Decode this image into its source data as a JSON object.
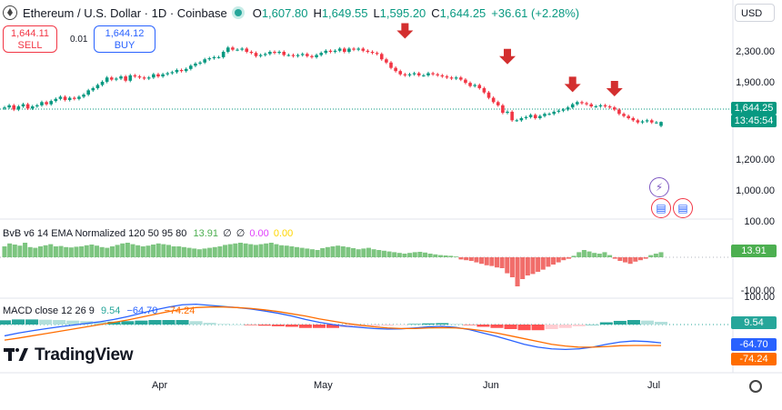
{
  "header": {
    "symbol": "Ethereum / U.S. Dollar · 1D · Coinbase",
    "o_label": "O",
    "o_value": "1,607.80",
    "h_label": "H",
    "h_value": "1,649.55",
    "l_label": "L",
    "l_value": "1,595.20",
    "c_label": "C",
    "c_value": "1,644.25",
    "change": "+36.61 (+2.28%)",
    "currency": "USD",
    "icon": "ethereum-icon"
  },
  "trade": {
    "sell_price": "1,644.11",
    "sell_label": "SELL",
    "buy_price": "1,644.12",
    "buy_label": "BUY",
    "spread": "0.01"
  },
  "price_axis": {
    "labels": [
      "2,300.00",
      "1,900.00",
      "1,200.00",
      "1,000.00"
    ],
    "last_price": "1,644.25",
    "countdown": "13:45:54",
    "last_price_color": "#089981"
  },
  "bvb": {
    "legend_name": "BvB v6 14 EMA Normalized 120 50 95 80",
    "legend_values": [
      "13.91",
      "∅",
      "∅",
      "0.00",
      "0.00"
    ],
    "axis_top": "100.00",
    "axis_bottom": "-100.00",
    "tag": "13.91",
    "tag_color": "#4caf50"
  },
  "macd": {
    "legend_name": "MACD close 12 26 9",
    "legend_values": [
      "9.54",
      "−64.70",
      "−74.24"
    ],
    "axis_top": "100.00",
    "tag_hist": "9.54",
    "tag_macd": "-64.70",
    "tag_signal": "-74.24",
    "colors": {
      "hist": "#26a69a",
      "macd": "#2962ff",
      "signal": "#ff6d00"
    }
  },
  "branding": {
    "logo_text": "TradingView"
  },
  "time_axis": {
    "months": [
      "Apr",
      "May",
      "Jun",
      "Jul"
    ]
  },
  "colors": {
    "up": "#089981",
    "down": "#f23645",
    "arrow": "#d32f2f"
  },
  "chart_data": [
    {
      "type": "candlestick",
      "title": "Ethereum / U.S. Dollar · 1D · Coinbase",
      "ohlc_last": {
        "open": 1607.8,
        "high": 1649.55,
        "low": 1595.2,
        "close": 1644.25
      },
      "y_ticks": [
        2300,
        1900,
        1200,
        1000
      ],
      "x_ticks": [
        "Apr",
        "May",
        "Jun",
        "Jul"
      ],
      "close_series": [
        1780,
        1800,
        1760,
        1790,
        1810,
        1770,
        1790,
        1800,
        1830,
        1810,
        1840,
        1860,
        1880,
        1850,
        1870,
        1860,
        1880,
        1900,
        1940,
        1960,
        1990,
        2020,
        2060,
        2040,
        2050,
        2070,
        2030,
        2080,
        2070,
        2060,
        2050,
        2060,
        2090,
        2070,
        2090,
        2100,
        2110,
        2130,
        2120,
        2140,
        2170,
        2190,
        2200,
        2230,
        2240,
        2250,
        2250,
        2300,
        2340,
        2320,
        2320,
        2330,
        2300,
        2290,
        2260,
        2270,
        2280,
        2300,
        2290,
        2300,
        2270,
        2270,
        2260,
        2270,
        2280,
        2260,
        2250,
        2270,
        2290,
        2310,
        2300,
        2310,
        2330,
        2300,
        2330,
        2320,
        2330,
        2310,
        2300,
        2290,
        2280,
        2230,
        2200,
        2150,
        2120,
        2090,
        2080,
        2090,
        2100,
        2080,
        2080,
        2100,
        2090,
        2080,
        2070,
        2060,
        2050,
        2060,
        2040,
        2010,
        1980,
        1990,
        1960,
        1920,
        1870,
        1830,
        1800,
        1730,
        1740,
        1660,
        1660,
        1680,
        1690,
        1710,
        1680,
        1700,
        1720,
        1720,
        1740,
        1750,
        1760,
        1780,
        1810,
        1830,
        1820,
        1810,
        1790,
        1790,
        1800,
        1790,
        1780,
        1760,
        1720,
        1700,
        1680,
        1660,
        1640,
        1650,
        1660,
        1640,
        1640,
        1644.25
      ],
      "markers": [
        "sell-arrow",
        "sell-arrow",
        "sell-arrow",
        "sell-arrow"
      ]
    },
    {
      "type": "bar",
      "title": "BvB v6 14 EMA Normalized 120 50 95 80",
      "ylim": [
        -100,
        100
      ],
      "values": [
        30,
        38,
        35,
        32,
        40,
        28,
        26,
        30,
        33,
        36,
        30,
        31,
        28,
        27,
        29,
        30,
        33,
        35,
        32,
        28,
        26,
        30,
        34,
        38,
        40,
        36,
        33,
        30,
        32,
        35,
        38,
        36,
        34,
        30,
        30,
        28,
        26,
        24,
        22,
        24,
        26,
        28,
        30,
        34,
        36,
        38,
        40,
        38,
        36,
        34,
        36,
        38,
        40,
        36,
        33,
        32,
        30,
        28,
        26,
        24,
        22,
        20,
        25,
        28,
        30,
        32,
        30,
        28,
        25,
        22,
        24,
        26,
        22,
        20,
        18,
        16,
        14,
        12,
        10,
        12,
        14,
        15,
        13,
        10,
        8,
        6,
        5,
        4,
        2,
        -6,
        -8,
        -10,
        -14,
        -18,
        -22,
        -24,
        -28,
        -30,
        -44,
        -55,
        -80,
        -60,
        -50,
        -46,
        -40,
        -34,
        -26,
        -20,
        -14,
        -8,
        -4,
        4,
        14,
        20,
        16,
        12,
        10,
        14,
        6,
        -4,
        -10,
        -14,
        -18,
        -12,
        -8,
        -4,
        6,
        10,
        13.91
      ]
    },
    {
      "type": "line",
      "title": "MACD close 12 26 9",
      "series": [
        {
          "name": "MACD",
          "values": [
            -40,
            -30,
            -22,
            -15,
            -8,
            -2,
            4,
            10,
            18,
            28,
            40,
            52,
            62,
            70,
            72,
            68,
            64,
            60,
            55,
            48,
            40,
            30,
            18,
            8,
            0,
            -6,
            -10,
            -14,
            -16,
            -15,
            -12,
            -8,
            -6,
            -10,
            -18,
            -30,
            -42,
            -56,
            -70,
            -80,
            -86,
            -88,
            -86,
            -80,
            -70,
            -62,
            -58,
            -60,
            -64.7
          ]
        },
        {
          "name": "Signal",
          "values": [
            -55,
            -48,
            -40,
            -32,
            -24,
            -16,
            -8,
            0,
            8,
            16,
            26,
            36,
            46,
            54,
            60,
            62,
            62,
            60,
            57,
            52,
            46,
            38,
            30,
            20,
            12,
            4,
            -2,
            -8,
            -12,
            -14,
            -14,
            -12,
            -11,
            -12,
            -16,
            -22,
            -30,
            -40,
            -50,
            -60,
            -70,
            -76,
            -80,
            -80,
            -78,
            -75,
            -74,
            -74,
            -74.24
          ]
        },
        {
          "name": "Histogram",
          "values": [
            15,
            18,
            18,
            17,
            16,
            14,
            12,
            10,
            10,
            12,
            14,
            16,
            16,
            16,
            12,
            6,
            2,
            0,
            -2,
            -4,
            -6,
            -8,
            -12,
            -12,
            -12,
            -10,
            -8,
            -6,
            -4,
            -1,
            2,
            4,
            5,
            2,
            -2,
            -8,
            -12,
            -16,
            -20,
            -20,
            -16,
            -12,
            -6,
            0,
            8,
            13,
            16,
            14,
            9.54
          ]
        }
      ]
    }
  ]
}
